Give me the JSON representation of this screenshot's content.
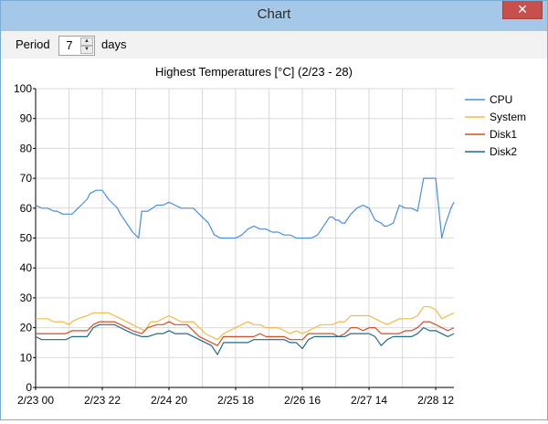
{
  "window": {
    "title": "Chart",
    "close_label": "✕"
  },
  "toolbar": {
    "period_label": "Period",
    "period_value": "7",
    "unit_label": "days",
    "up_arrow": "▲",
    "down_arrow": "▼"
  },
  "colors": {
    "CPU": "#4a8fdc",
    "System": "#f2b94a",
    "Disk1": "#d0502a",
    "Disk2": "#236a8c",
    "grid": "#d9d9d9"
  },
  "chart_data": {
    "type": "line",
    "title": "Highest Temperatures [°C] (2/23 - 28)",
    "xlabel": "",
    "ylabel": "",
    "ylim": [
      0,
      100
    ],
    "yticks": [
      0,
      10,
      20,
      30,
      40,
      50,
      60,
      70,
      80,
      90,
      100
    ],
    "xlim": [
      0,
      138
    ],
    "x_unit": "hours from 2/23 00",
    "x_tick_values": [
      0,
      22,
      44,
      66,
      88,
      110,
      132
    ],
    "x_tick_labels": [
      "2/23 00",
      "2/23 22",
      "2/24 20",
      "2/25 18",
      "2/26 16",
      "2/27 14",
      "2/28 12"
    ],
    "legend_position": "right",
    "grid": true,
    "series": [
      {
        "name": "CPU",
        "x": [
          0,
          2,
          4,
          6,
          7,
          9,
          10,
          12,
          14,
          15,
          17,
          18,
          20,
          22,
          24,
          27,
          28,
          30,
          32,
          34,
          35,
          37,
          40,
          42,
          44,
          46,
          48,
          50,
          52,
          54,
          55,
          57,
          58,
          59,
          61,
          63,
          64,
          66,
          68,
          70,
          72,
          74,
          76,
          78,
          80,
          82,
          84,
          86,
          88,
          89,
          91,
          93,
          95,
          97,
          98,
          99,
          100,
          101,
          102,
          104,
          106,
          108,
          110,
          112,
          114,
          115,
          116,
          118,
          120,
          122,
          124,
          126,
          128,
          130,
          132,
          134,
          135,
          136,
          137,
          138
        ],
        "y": [
          61,
          60,
          60,
          59,
          59,
          58,
          58,
          58,
          60,
          61,
          63,
          65,
          66,
          66,
          63,
          60,
          58,
          55,
          52,
          50,
          59,
          59,
          61,
          61,
          62,
          61,
          60,
          60,
          60,
          58,
          57,
          55,
          53,
          51,
          50,
          50,
          50,
          50,
          51,
          53,
          54,
          53,
          53,
          52,
          52,
          51,
          51,
          50,
          50,
          50,
          50,
          51,
          54,
          57,
          57,
          56,
          56,
          55,
          55,
          58,
          60,
          61,
          60,
          56,
          55,
          54,
          54,
          55,
          61,
          60,
          60,
          59,
          70,
          70,
          70,
          50,
          54,
          57,
          60,
          62
        ]
      },
      {
        "name": "System",
        "x": [
          0,
          4,
          6,
          9,
          11,
          12,
          14,
          17,
          19,
          21,
          24,
          26,
          28,
          30,
          32,
          34,
          36,
          38,
          40,
          42,
          44,
          46,
          48,
          50,
          52,
          54,
          56,
          58,
          60,
          62,
          64,
          66,
          68,
          70,
          72,
          74,
          76,
          78,
          80,
          82,
          84,
          86,
          88,
          90,
          92,
          94,
          96,
          98,
          100,
          102,
          104,
          106,
          108,
          110,
          112,
          114,
          116,
          118,
          120,
          122,
          124,
          126,
          128,
          130,
          132,
          134,
          136,
          138
        ],
        "y": [
          23,
          23,
          22,
          22,
          21,
          22,
          23,
          24,
          25,
          25,
          25,
          24,
          23,
          22,
          21,
          20,
          19,
          22,
          22,
          23,
          24,
          23,
          22,
          22,
          22,
          20,
          18,
          17,
          16,
          18,
          19,
          20,
          21,
          22,
          21,
          21,
          20,
          20,
          20,
          19,
          18,
          19,
          18,
          19,
          20,
          21,
          21,
          21,
          22,
          22,
          24,
          24,
          24,
          24,
          23,
          22,
          21,
          22,
          23,
          23,
          23,
          24,
          27,
          27,
          26,
          23,
          24,
          25
        ]
      },
      {
        "name": "Disk1",
        "x": [
          0,
          2,
          5,
          8,
          10,
          12,
          14,
          17,
          19,
          21,
          24,
          26,
          28,
          30,
          32,
          35,
          37,
          40,
          42,
          44,
          46,
          48,
          50,
          52,
          54,
          56,
          58,
          60,
          62,
          64,
          66,
          68,
          70,
          72,
          74,
          76,
          78,
          80,
          82,
          84,
          86,
          88,
          90,
          92,
          94,
          96,
          98,
          100,
          102,
          104,
          106,
          108,
          110,
          112,
          114,
          116,
          118,
          120,
          122,
          124,
          126,
          128,
          130,
          132,
          134,
          136,
          138
        ],
        "y": [
          18,
          18,
          18,
          18,
          18,
          19,
          19,
          19,
          21,
          22,
          22,
          22,
          21,
          20,
          19,
          18,
          20,
          21,
          21,
          22,
          21,
          21,
          21,
          19,
          17,
          16,
          15,
          14,
          17,
          17,
          17,
          17,
          17,
          17,
          18,
          17,
          17,
          17,
          17,
          16,
          16,
          16,
          18,
          18,
          18,
          18,
          18,
          17,
          18,
          20,
          20,
          19,
          20,
          20,
          18,
          18,
          18,
          18,
          19,
          19,
          20,
          22,
          22,
          21,
          20,
          19,
          20
        ]
      },
      {
        "name": "Disk2",
        "x": [
          0,
          2,
          5,
          8,
          10,
          12,
          14,
          17,
          19,
          21,
          24,
          26,
          28,
          30,
          32,
          35,
          37,
          40,
          42,
          44,
          46,
          48,
          50,
          52,
          54,
          56,
          58,
          60,
          62,
          64,
          66,
          68,
          70,
          72,
          74,
          76,
          78,
          80,
          82,
          84,
          86,
          88,
          90,
          92,
          94,
          96,
          98,
          100,
          102,
          104,
          106,
          108,
          110,
          112,
          114,
          116,
          118,
          120,
          122,
          124,
          126,
          128,
          130,
          132,
          134,
          136,
          138
        ],
        "y": [
          17,
          16,
          16,
          16,
          16,
          17,
          17,
          17,
          20,
          21,
          21,
          21,
          20,
          19,
          18,
          17,
          17,
          18,
          18,
          19,
          18,
          18,
          18,
          17,
          16,
          15,
          14,
          11,
          15,
          15,
          15,
          15,
          15,
          16,
          16,
          16,
          16,
          16,
          16,
          15,
          15,
          13,
          16,
          17,
          17,
          17,
          17,
          17,
          17,
          18,
          18,
          18,
          18,
          17,
          14,
          16,
          17,
          17,
          17,
          17,
          18,
          20,
          19,
          19,
          18,
          17,
          18
        ]
      }
    ]
  }
}
